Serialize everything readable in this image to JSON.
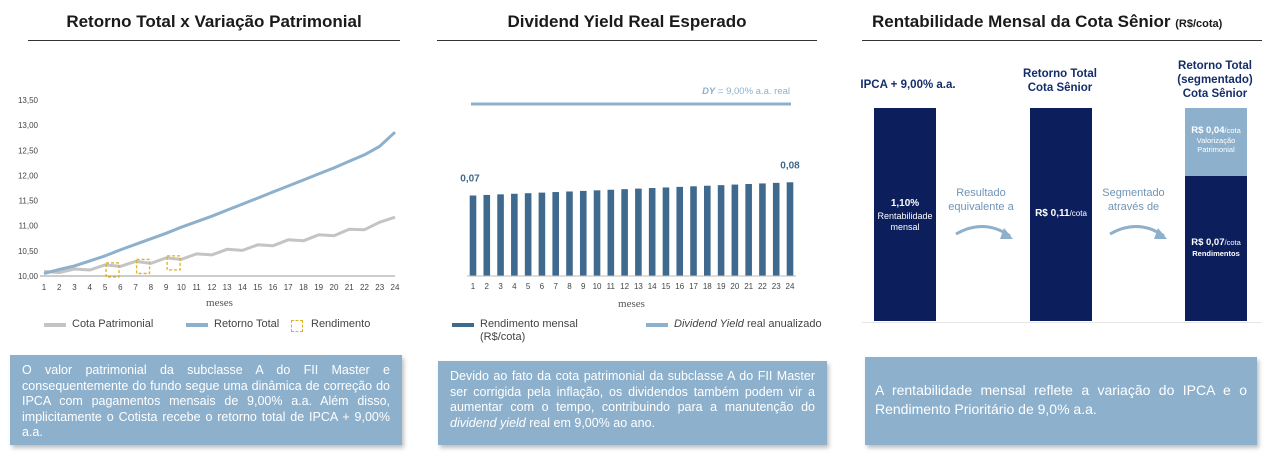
{
  "panels": {
    "left": {
      "title": "Retorno Total x Variação Patrimonial",
      "xlabel": "meses",
      "legend": {
        "cota": "Cota Patrimonial",
        "retorno": "Retorno Total",
        "rendimento": "Rendimento"
      },
      "text": "O valor patrimonial da subclasse A do FII Master e consequentemente do fundo segue uma dinâmica de correção do IPCA com pagamentos mensais de 9,00% a.a. Além disso, implicitamente o Cotista recebe o retorno total de IPCA + 9,00% a.a."
    },
    "middle": {
      "title": "Dividend Yield Real Esperado",
      "xlabel": "meses",
      "dy_label_italic": "DY",
      "dy_label_rest": " = 9,00% a.a. real",
      "first_label": "0,07",
      "last_label": "0,08",
      "legend": {
        "bar": "Rendimento mensal (R$/cota)",
        "line_italic": "Dividend Yield",
        "line_rest": " real anualizado"
      },
      "text_before": "Devido ao fato da cota patrimonial da subclasse A do FII Master ser corrigida pela inflação, os dividendos também podem vir a aumentar com o tempo, contribuindo para a manutenção do ",
      "text_italic": "dividend yield",
      "text_after": " real em 9,00% ao ano."
    },
    "right": {
      "title": "Rentabilidade Mensal da Cota Sênior",
      "title_unit": "(R$/cota)",
      "col1_title": "IPCA + 9,00% a.a.",
      "col1_value": "1,10%",
      "col1_sub": "Rentabilidade mensal",
      "arrow1_text": "Resultado equivalente a",
      "col2_title": "Retorno Total Cota Sênior",
      "col2_value": "R$ 0,11",
      "col2_unit": "/cota",
      "arrow2_text": "Segmentado através de",
      "col3_title": "Retorno Total (segmentado) Cota Sênior",
      "col3_top_value": "R$ 0,04",
      "col3_top_unit": "/cota",
      "col3_top_sub": "Valorização Patrimonial",
      "col3_bot_value": "R$ 0,07",
      "col3_bot_unit": "/cota",
      "col3_bot_sub": "Rendimentos",
      "text": "A rentabilidade mensal reflete a variação do IPCA e o Rendimento Prioritário de 9,0% a.a."
    }
  },
  "colors": {
    "navy": "#0c1f5c",
    "steel": "#3f6a8d",
    "light_blue": "#8db0cc",
    "gray_line": "#c4c4c4",
    "gold": "#e0b020"
  },
  "chart_data": [
    {
      "type": "line",
      "title": "Retorno Total x Variação Patrimonial",
      "xlabel": "meses",
      "ylabel": "",
      "x": [
        1,
        2,
        3,
        4,
        5,
        6,
        7,
        8,
        9,
        10,
        11,
        12,
        13,
        14,
        15,
        16,
        17,
        18,
        19,
        20,
        21,
        22,
        23,
        24
      ],
      "ylim": [
        10.0,
        13.5
      ],
      "yticks": [
        "10,00",
        "10,50",
        "11,00",
        "11,50",
        "12,00",
        "12,50",
        "13,00",
        "13,50"
      ],
      "series": [
        {
          "name": "Retorno Total",
          "values": [
            10.05,
            10.13,
            10.2,
            10.3,
            10.4,
            10.52,
            10.63,
            10.74,
            10.85,
            10.97,
            11.08,
            11.19,
            11.31,
            11.43,
            11.55,
            11.67,
            11.79,
            11.91,
            12.03,
            12.15,
            12.28,
            12.41,
            12.58,
            12.86
          ]
        },
        {
          "name": "Cota Patrimonial",
          "values": [
            10.05,
            10.1,
            10.1,
            10.15,
            10.18,
            10.22,
            10.25,
            10.28,
            10.32,
            10.36,
            10.4,
            10.45,
            10.49,
            10.54,
            10.58,
            10.63,
            10.68,
            10.73,
            10.78,
            10.83,
            10.89,
            10.95,
            11.03,
            11.2
          ]
        }
      ],
      "rendimento_markers_at_x": [
        5,
        7,
        9
      ]
    },
    {
      "type": "bar",
      "title": "Dividend Yield Real Esperado",
      "xlabel": "meses",
      "categories": [
        "1",
        "2",
        "3",
        "4",
        "5",
        "6",
        "7",
        "8",
        "9",
        "10",
        "11",
        "12",
        "13",
        "14",
        "15",
        "16",
        "17",
        "18",
        "19",
        "20",
        "21",
        "22",
        "23",
        "24"
      ],
      "series": [
        {
          "name": "Rendimento mensal (R$/cota)",
          "values": [
            0.07,
            0.0705,
            0.071,
            0.0715,
            0.072,
            0.0725,
            0.073,
            0.0735,
            0.074,
            0.0745,
            0.075,
            0.0755,
            0.076,
            0.0765,
            0.077,
            0.0775,
            0.078,
            0.0785,
            0.079,
            0.0795,
            0.08,
            0.0805,
            0.081,
            0.0815
          ]
        }
      ],
      "reference_line": {
        "name": "Dividend Yield real anualizado",
        "label": "DY = 9,00% a.a. real"
      }
    }
  ]
}
